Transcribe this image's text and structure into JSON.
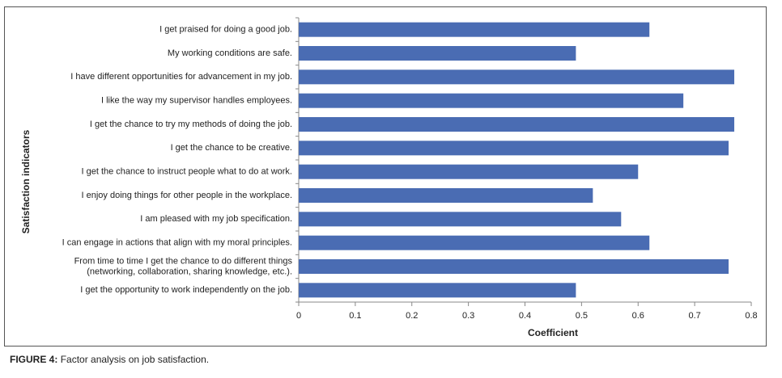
{
  "chart_data": {
    "type": "barh",
    "categories": [
      "I get praised for doing a good job.",
      "My working conditions are safe.",
      "I have different opportunities for advancement in my job.",
      "I like the way my supervisor handles employees.",
      "I get the chance to try my methods of doing the job.",
      "I get the chance to be creative.",
      "I get the chance to instruct people what to do at work.",
      "I enjoy doing things for other people in the workplace.",
      "I am pleased with my job specification.",
      "I can engage in actions that align with my moral principles.",
      "From time to time I get the chance to do different things\n(networking, collaboration, sharing knowledge, etc.).",
      "I get the opportunity to work independently on the job."
    ],
    "values": [
      0.62,
      0.49,
      0.77,
      0.68,
      0.77,
      0.76,
      0.6,
      0.52,
      0.57,
      0.62,
      0.76,
      0.49
    ],
    "color": "#4a6cb3",
    "xlim": [
      0,
      0.8
    ],
    "xticks": [
      0,
      0.1,
      0.2,
      0.3,
      0.4,
      0.5,
      0.6,
      0.7,
      0.8
    ],
    "xlabel": "Coefficient",
    "ylabel": "Satisfaction indicators",
    "grid": false
  },
  "caption": {
    "label": "FIGURE 4:",
    "text": "Factor analysis on job satisfaction."
  }
}
